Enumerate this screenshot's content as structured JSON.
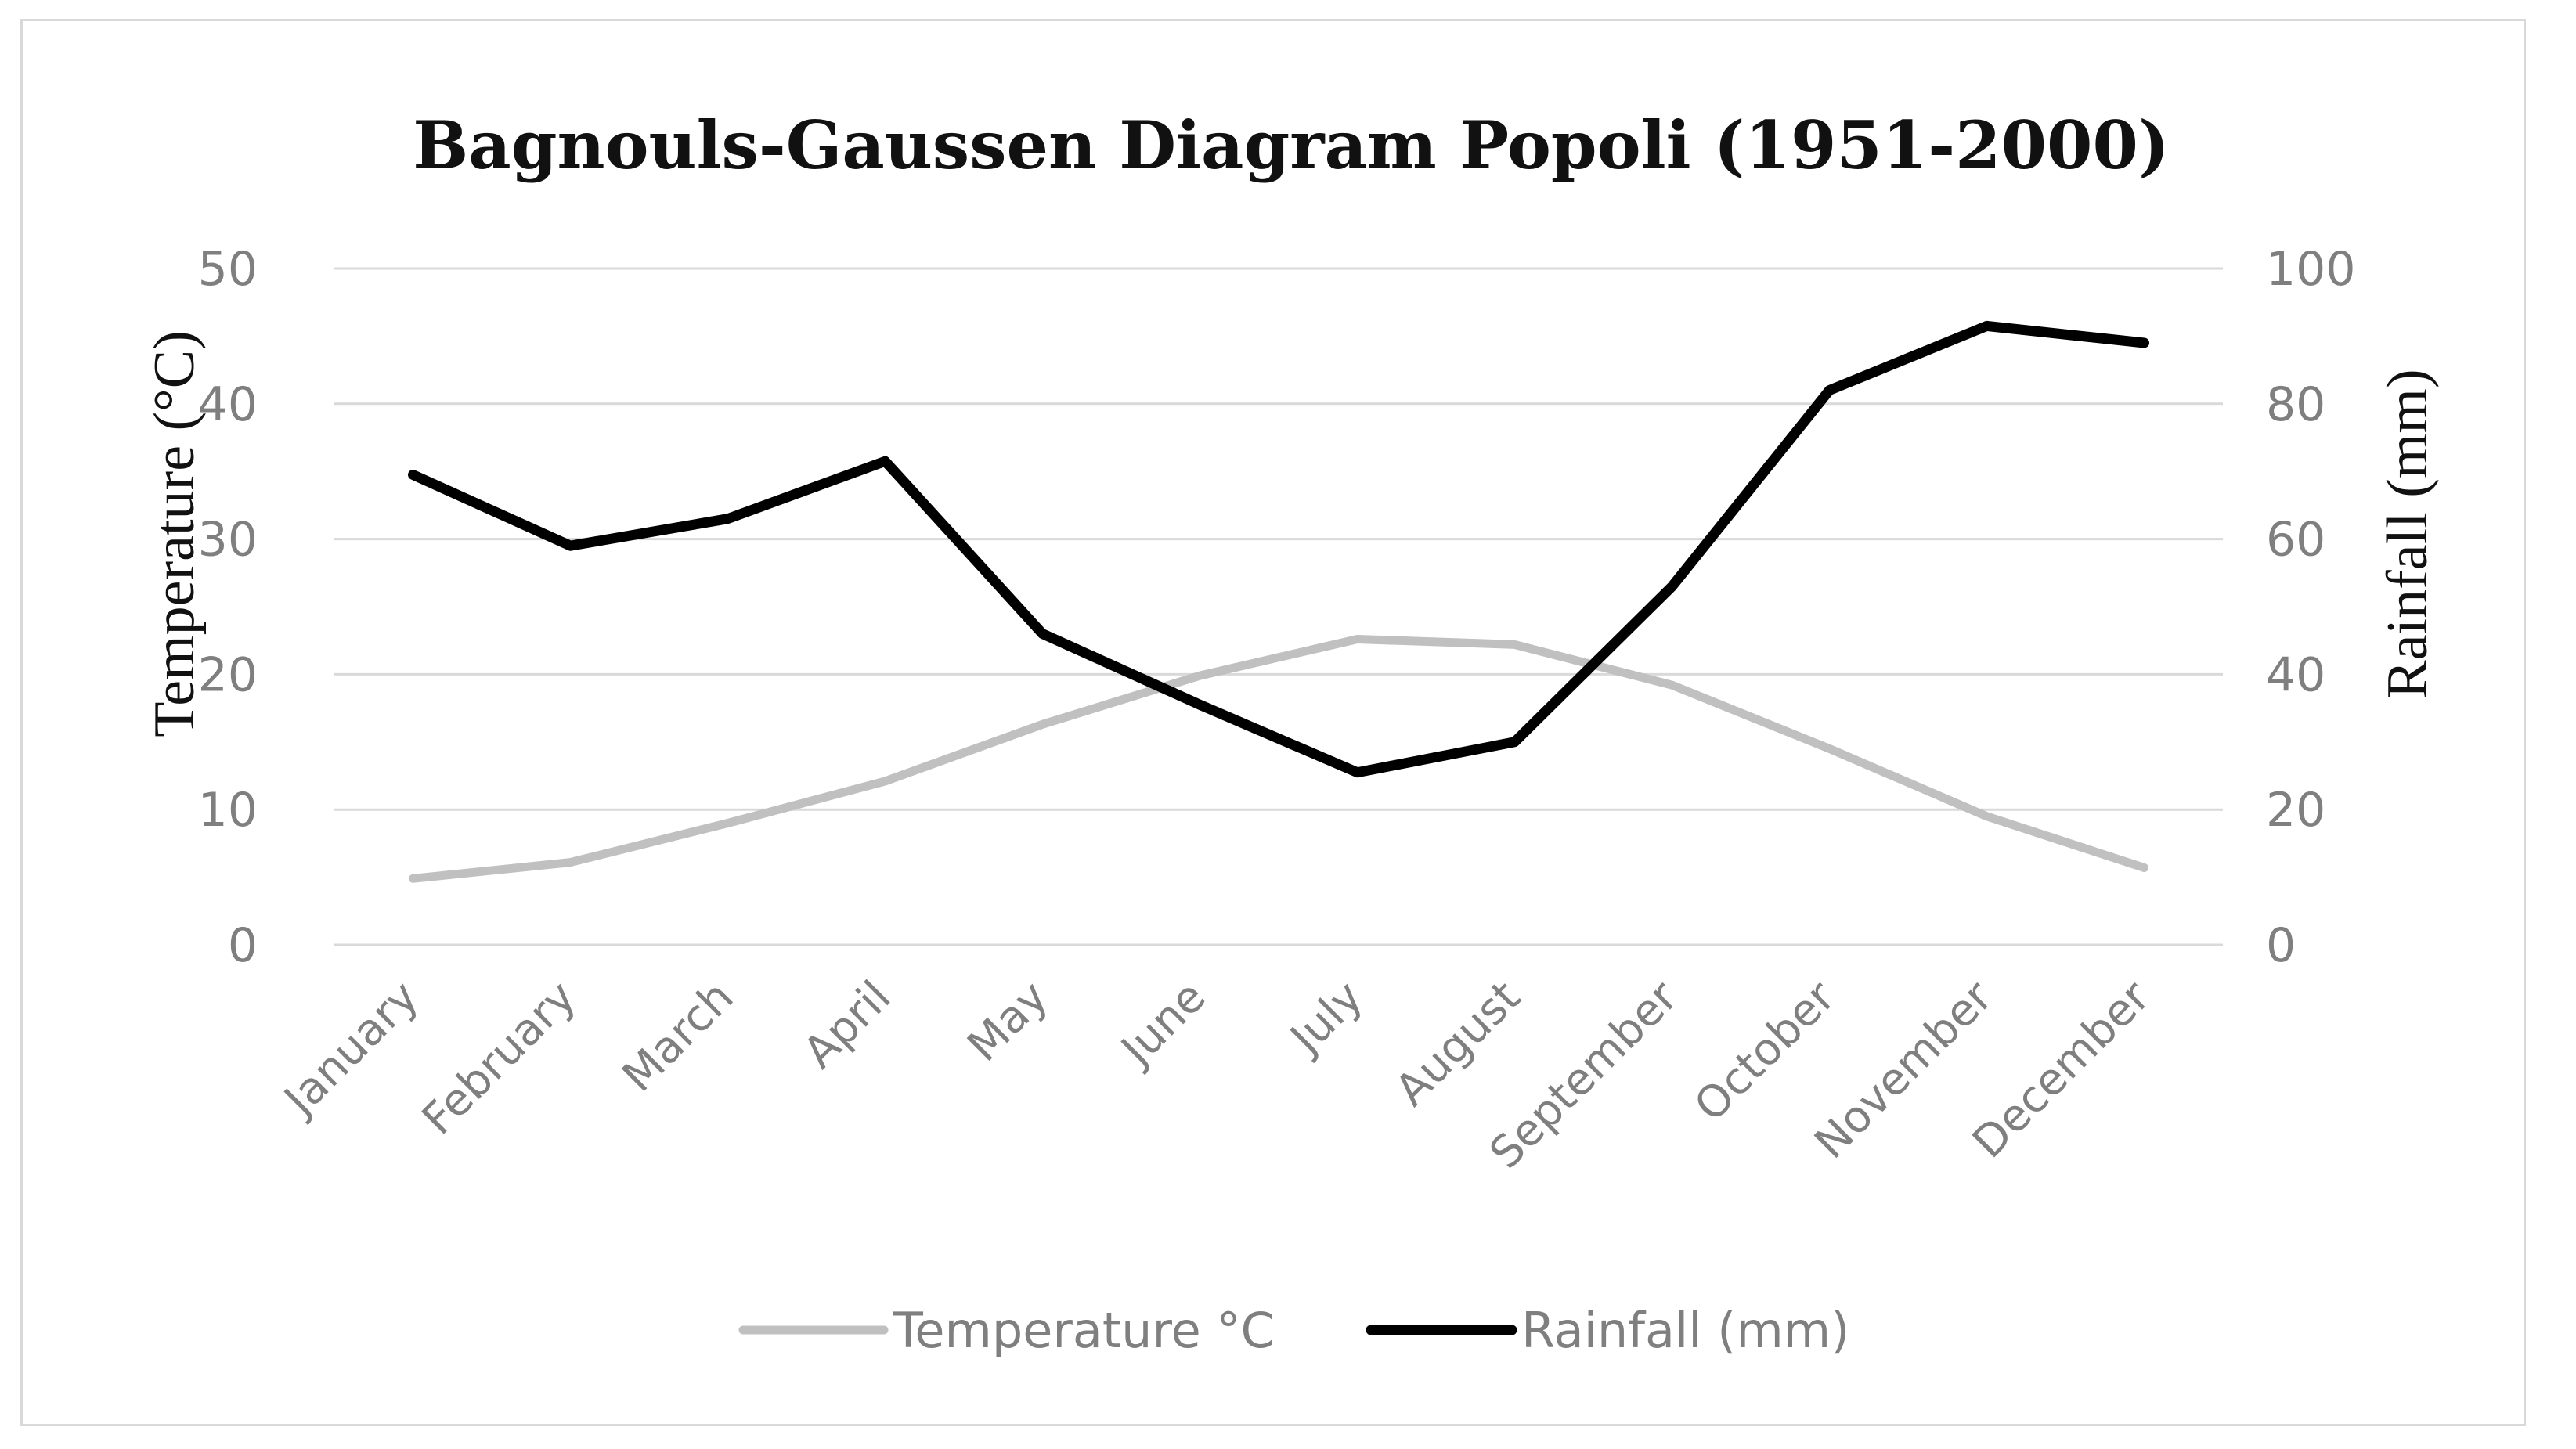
{
  "chart_data": {
    "type": "line",
    "title": "Bagnouls-Gaussen Diagram Popoli (1951-2000)",
    "xlabel": "",
    "ylabel": "Temperature (°C)",
    "y2label": "Rainfall (mm)",
    "categories": [
      "January",
      "February",
      "March",
      "April",
      "May",
      "June",
      "July",
      "August",
      "September",
      "October",
      "November",
      "December"
    ],
    "ylim": [
      0,
      50
    ],
    "y2lim": [
      0,
      100
    ],
    "yticks": [
      0,
      10,
      20,
      30,
      40,
      50
    ],
    "y2ticks": [
      0,
      20,
      40,
      60,
      80,
      100
    ],
    "grid": true,
    "legend_position": "bottom",
    "series": [
      {
        "name": "Temperature °C",
        "axis": "left",
        "color": "#c0c0c0",
        "values": [
          4.9,
          6.1,
          9.0,
          12.1,
          16.3,
          19.9,
          22.6,
          22.2,
          19.2,
          14.5,
          9.5,
          5.7
        ]
      },
      {
        "name": "Rainfall (mm)",
        "axis": "right",
        "color": "#000000",
        "values": [
          69.5,
          59.0,
          63.0,
          71.5,
          46.0,
          35.5,
          25.5,
          30.0,
          53.0,
          82.0,
          91.5,
          89.0
        ]
      }
    ]
  }
}
